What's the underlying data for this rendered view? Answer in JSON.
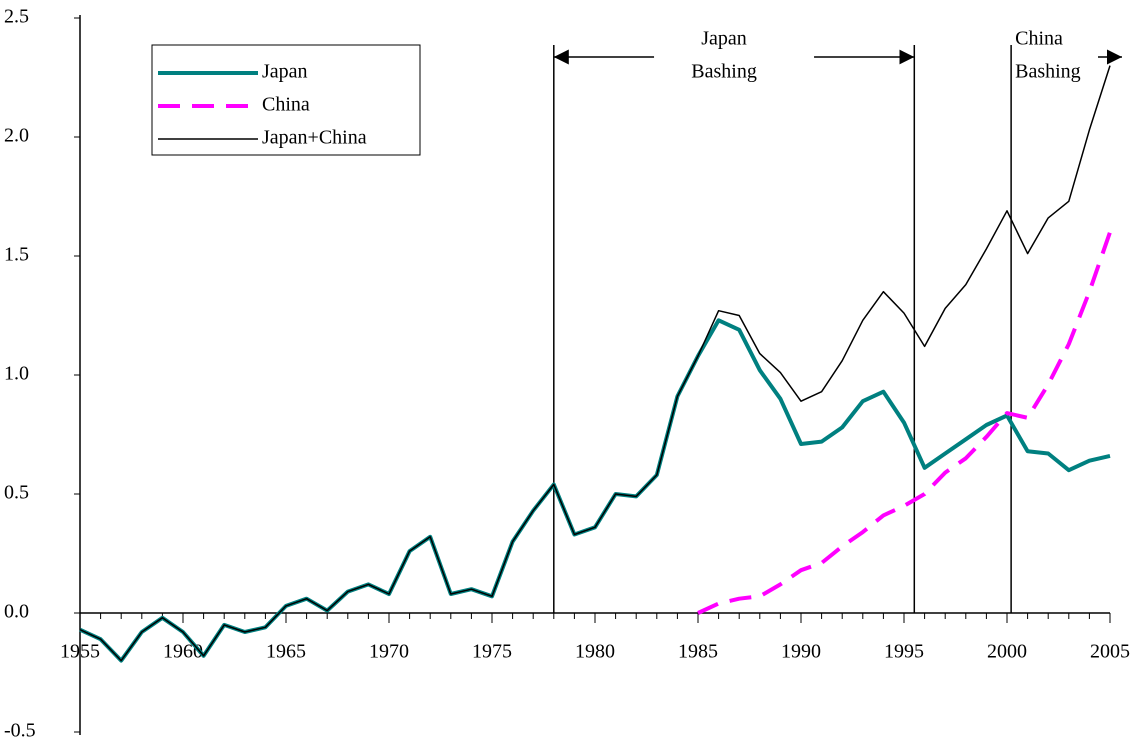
{
  "chart_data": {
    "type": "line",
    "x": [
      1955,
      1956,
      1957,
      1958,
      1959,
      1960,
      1961,
      1962,
      1963,
      1964,
      1965,
      1966,
      1967,
      1968,
      1969,
      1970,
      1971,
      1972,
      1973,
      1974,
      1975,
      1976,
      1977,
      1978,
      1979,
      1980,
      1981,
      1982,
      1983,
      1984,
      1985,
      1986,
      1987,
      1988,
      1989,
      1990,
      1991,
      1992,
      1993,
      1994,
      1995,
      1996,
      1997,
      1998,
      1999,
      2000,
      2001,
      2002,
      2003,
      2004,
      2005
    ],
    "series": [
      {
        "name": "Japan",
        "color": "#008080",
        "values": [
          -0.07,
          -0.11,
          -0.2,
          -0.08,
          -0.02,
          -0.08,
          -0.18,
          -0.05,
          -0.08,
          -0.06,
          0.03,
          0.06,
          0.01,
          0.09,
          0.12,
          0.08,
          0.26,
          0.32,
          0.08,
          0.1,
          0.07,
          0.3,
          0.43,
          0.54,
          0.33,
          0.36,
          0.5,
          0.49,
          0.58,
          0.91,
          1.08,
          1.23,
          1.19,
          1.02,
          0.9,
          0.71,
          0.72,
          0.78,
          0.89,
          0.93,
          0.8,
          0.61,
          0.67,
          0.73,
          0.79,
          0.83,
          0.68,
          0.67,
          0.6,
          0.64,
          0.66
        ]
      },
      {
        "name": "China",
        "color": "#ff00ff",
        "values": [
          null,
          null,
          null,
          null,
          null,
          null,
          null,
          null,
          null,
          null,
          null,
          null,
          null,
          null,
          null,
          null,
          null,
          null,
          null,
          null,
          null,
          null,
          null,
          null,
          null,
          null,
          null,
          null,
          null,
          null,
          0.0,
          0.04,
          0.06,
          0.07,
          0.12,
          0.18,
          0.21,
          0.28,
          0.34,
          0.41,
          0.45,
          0.5,
          0.59,
          0.65,
          0.74,
          0.84,
          0.82,
          0.96,
          1.13,
          1.35,
          1.6
        ]
      },
      {
        "name": "Japan+China",
        "color": "#000000",
        "values": [
          -0.07,
          -0.11,
          -0.2,
          -0.08,
          -0.02,
          -0.08,
          -0.18,
          -0.05,
          -0.08,
          -0.06,
          0.03,
          0.06,
          0.01,
          0.09,
          0.12,
          0.08,
          0.26,
          0.32,
          0.08,
          0.1,
          0.07,
          0.3,
          0.43,
          0.54,
          0.33,
          0.36,
          0.5,
          0.49,
          0.58,
          0.91,
          1.08,
          1.27,
          1.25,
          1.09,
          1.01,
          0.89,
          0.93,
          1.06,
          1.23,
          1.35,
          1.26,
          1.12,
          1.28,
          1.38,
          1.53,
          1.69,
          1.51,
          1.66,
          1.73,
          2.03,
          2.3
        ]
      }
    ],
    "xlim": [
      1955,
      2005
    ],
    "xticks": [
      1955,
      1960,
      1965,
      1970,
      1975,
      1980,
      1985,
      1990,
      1995,
      2000,
      2005
    ],
    "ylim": [
      -0.5,
      2.5
    ],
    "yticks": [
      {
        "value": -0.5,
        "label": "-0.5"
      },
      {
        "value": 0,
        "label": "0.0"
      },
      {
        "value": 0.5,
        "label": "0.5"
      },
      {
        "value": 1,
        "label": "1.0"
      },
      {
        "value": 1.5,
        "label": "1.5"
      },
      {
        "value": 2,
        "label": "2.0"
      },
      {
        "value": 2.5,
        "label": "2.5"
      }
    ],
    "annotations": [
      {
        "lines": [
          "Japan",
          "Bashing"
        ],
        "start": 1978,
        "end": 1995.5
      },
      {
        "lines": [
          "China",
          "Bashing"
        ],
        "start": 2000.2
      }
    ],
    "legend": "upper left"
  }
}
